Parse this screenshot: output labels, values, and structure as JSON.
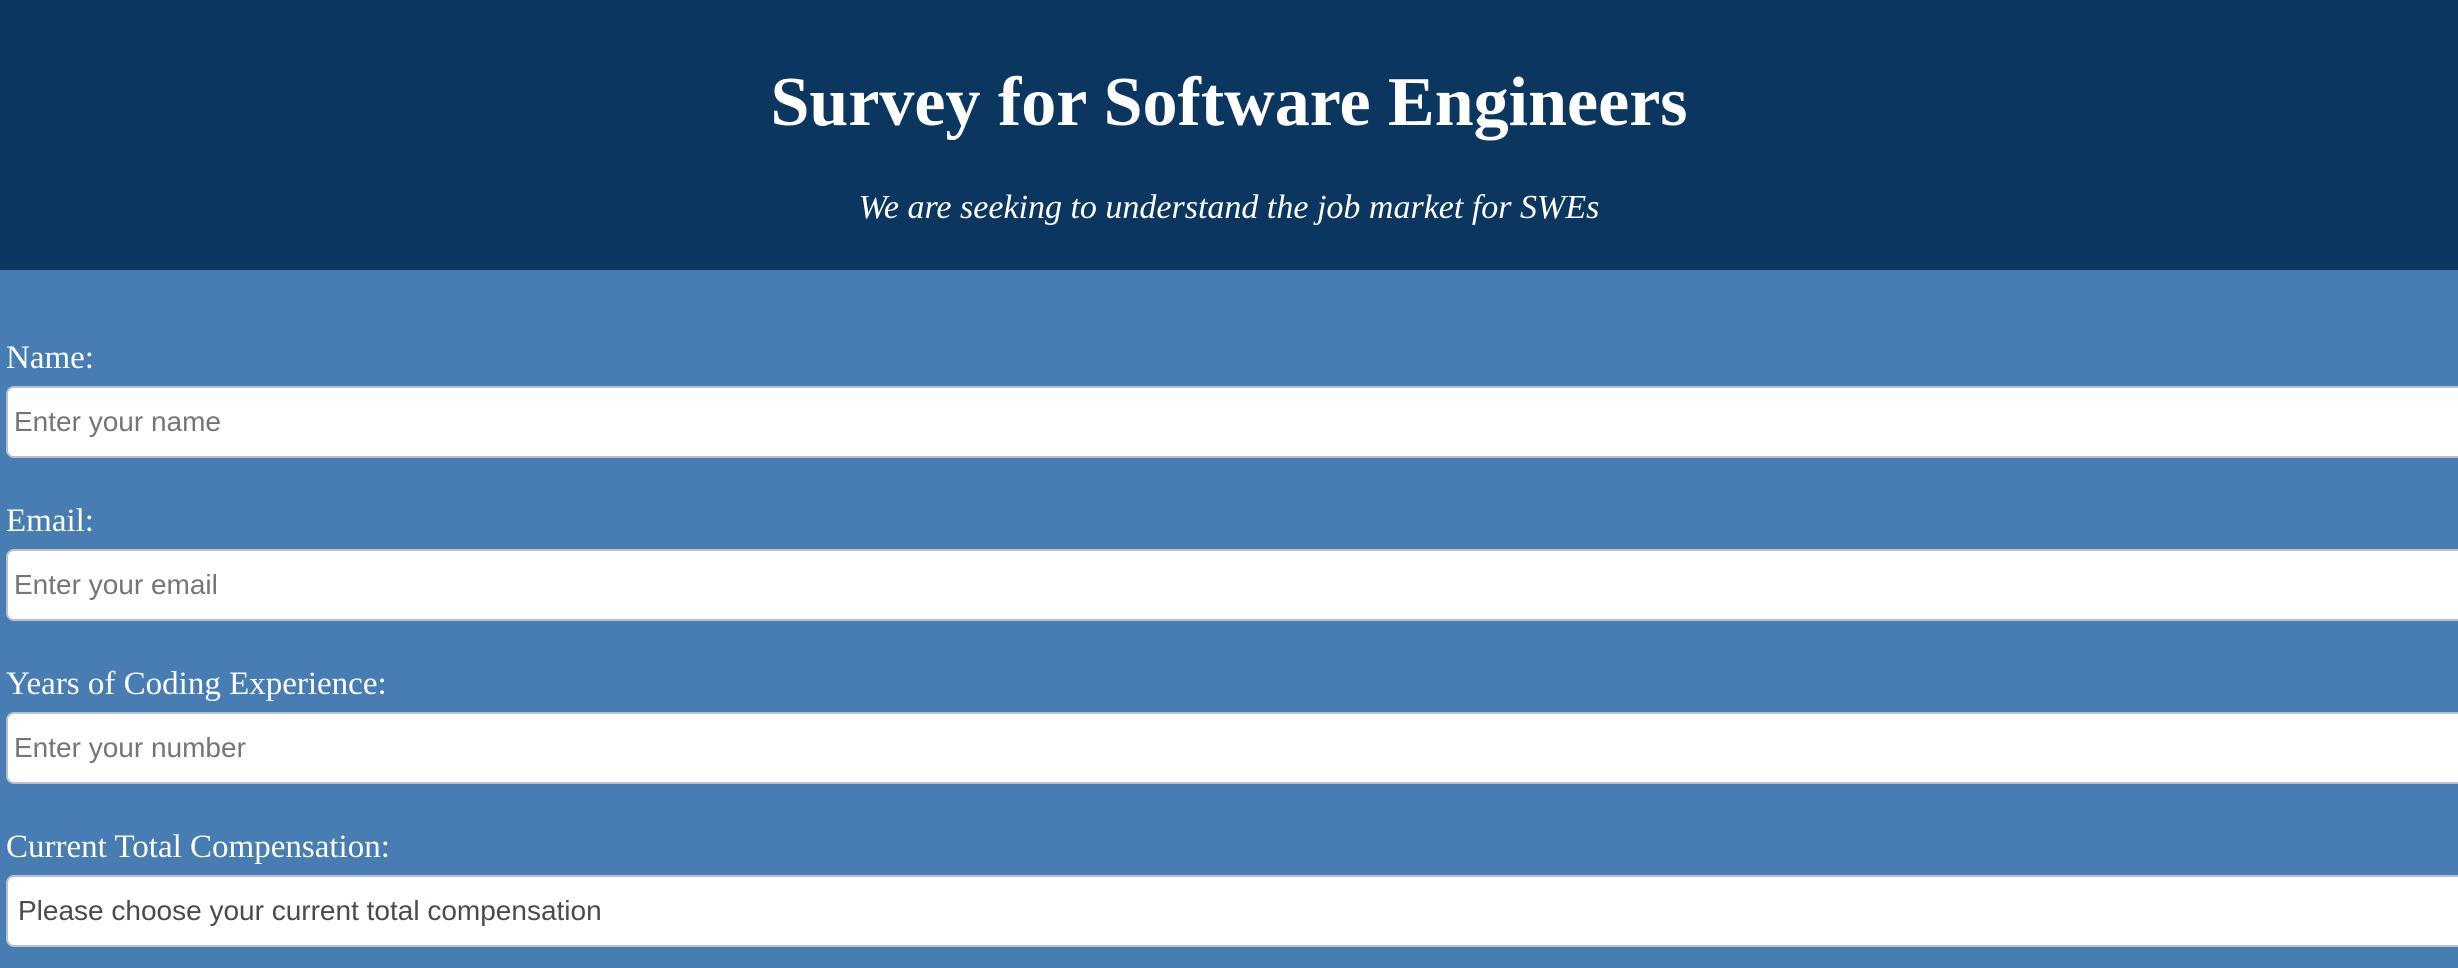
{
  "header": {
    "title": "Survey for Software Engineers",
    "description": "We are seeking to understand the job market for SWEs"
  },
  "form": {
    "name": {
      "label": "Name:",
      "placeholder": "Enter your name"
    },
    "email": {
      "label": "Email:",
      "placeholder": "Enter your email"
    },
    "experience": {
      "label": "Years of Coding Experience:",
      "placeholder": "Enter your number"
    },
    "compensation": {
      "label": "Current Total Compensation:",
      "selected": "Please choose your current total compensation"
    }
  },
  "colors": {
    "header_background": "#0b3660",
    "page_background": "#477db2",
    "text": "#ffffff"
  }
}
